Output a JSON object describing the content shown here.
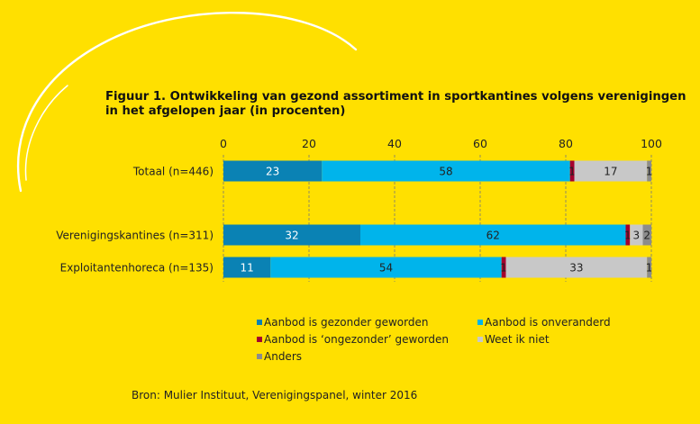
{
  "title": "Figuur 1. Ontwikkeling van gezond assortiment in sportkantines volgens verenigingen in het afgelopen jaar (in procenten)",
  "source": "Bron: Mulier Instituut, Verenigingspanel, winter 2016",
  "colors": {
    "background": "#FFE000",
    "swoosh": "#FFFFFF"
  },
  "chart_data": {
    "type": "bar",
    "orientation": "horizontal",
    "stacked": true,
    "title": "Figuur 1. Ontwikkeling van gezond assortiment in sportkantines volgens verenigingen in het afgelopen jaar (in procenten)",
    "xlim": [
      0,
      100
    ],
    "xticks": [
      "0",
      "20",
      "40",
      "60",
      "80",
      "100"
    ],
    "grid": "vertical dashed",
    "legend_position": "bottom",
    "categories": [
      "Totaal (n=446)",
      "Verenigingskantines (n=311)",
      "Exploitantenhoreca (n=135)"
    ],
    "series": [
      {
        "name": "Aanbod is gezonder geworden",
        "color": "#0A82B4",
        "values": [
          23,
          32,
          11
        ],
        "labels": [
          "23",
          "32",
          "11"
        ]
      },
      {
        "name": "Aanbod is onveranderd",
        "color": "#00B4EB",
        "values": [
          58,
          62,
          54
        ],
        "labels": [
          "58",
          "62",
          "54"
        ]
      },
      {
        "name": "Aanbod is ‘ongezonder’ geworden",
        "color": "#A5002D",
        "values": [
          1,
          1,
          1
        ],
        "labels": [
          "1",
          "1",
          "1"
        ]
      },
      {
        "name": "Weet ik niet",
        "color": "#C8C8C8",
        "values": [
          17,
          3,
          33
        ],
        "labels": [
          "17",
          "3",
          "33"
        ]
      },
      {
        "name": "Anders",
        "color": "#8C8C8C",
        "values": [
          1,
          2,
          1
        ],
        "labels": [
          "1",
          "2",
          "1"
        ]
      }
    ]
  }
}
